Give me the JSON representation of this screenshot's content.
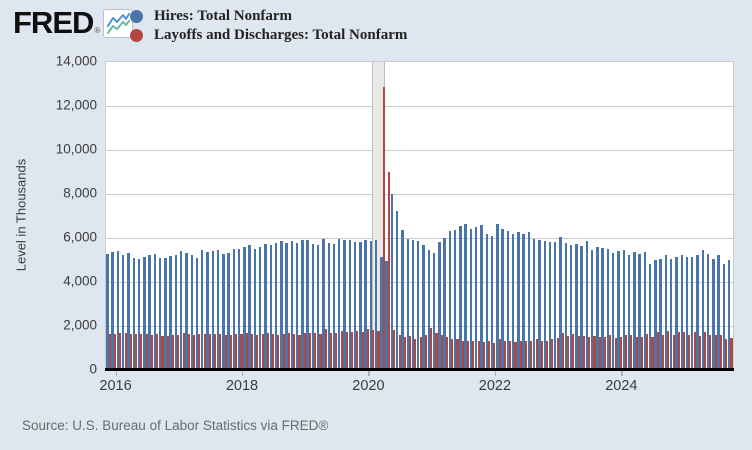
{
  "header": {
    "logo_text": "FRED",
    "logo_reg": "®"
  },
  "legend": [
    {
      "label": "Hires: Total Nonfarm",
      "color": "#4975a8"
    },
    {
      "label": "Layoffs and Discharges: Total Nonfarm",
      "color": "#b04743"
    }
  ],
  "colors": {
    "page_bg": "#dee7ef",
    "plot_bg": "#ffffff",
    "gridline": "#cccccc",
    "axis_line": "#000000",
    "recession_shading": "#e9e9e9"
  },
  "chart_data": {
    "type": "bar",
    "frequency": "monthly",
    "x_start": "2015-11",
    "x_end": "2025-09",
    "title": "",
    "xlabel": "",
    "ylabel": "Level in Thousands",
    "ylim": [
      0,
      14000
    ],
    "grid": true,
    "legend_position": "top",
    "y_ticks": [
      {
        "value": 0,
        "label": "0"
      },
      {
        "value": 2000,
        "label": "2,000"
      },
      {
        "value": 4000,
        "label": "4,000"
      },
      {
        "value": 6000,
        "label": "6,000"
      },
      {
        "value": 8000,
        "label": "8,000"
      },
      {
        "value": 10000,
        "label": "10,000"
      },
      {
        "value": 12000,
        "label": "12,000"
      },
      {
        "value": 14000,
        "label": "14,000"
      }
    ],
    "x_ticks": [
      {
        "label": "2016",
        "month_index": 2
      },
      {
        "label": "2018",
        "month_index": 26
      },
      {
        "label": "2020",
        "month_index": 50
      },
      {
        "label": "2022",
        "month_index": 74
      },
      {
        "label": "2024",
        "month_index": 98
      }
    ],
    "recession_shading": {
      "start": "2020-02",
      "end": "2020-04",
      "start_month_index": 51,
      "end_month_index": 53
    },
    "series": [
      {
        "name": "Hires: Total Nonfarm",
        "color": "#4975a8",
        "values": [
          5280,
          5360,
          5390,
          5250,
          5310,
          5090,
          5050,
          5130,
          5220,
          5260,
          5080,
          5110,
          5160,
          5250,
          5430,
          5310,
          5210,
          5100,
          5470,
          5380,
          5420,
          5470,
          5270,
          5340,
          5480,
          5490,
          5570,
          5680,
          5490,
          5610,
          5750,
          5700,
          5780,
          5870,
          5770,
          5880,
          5790,
          5900,
          5890,
          5740,
          5660,
          5940,
          5790,
          5740,
          5950,
          5890,
          5910,
          5840,
          5810,
          5900,
          5880,
          5900,
          5140,
          4960,
          7990,
          7240,
          6350,
          5950,
          5900,
          5850,
          5700,
          5450,
          5330,
          5840,
          5990,
          6300,
          6350,
          6550,
          6650,
          6420,
          6500,
          6600,
          6190,
          6110,
          6650,
          6420,
          6340,
          6190,
          6270,
          6190,
          6270,
          5970,
          5890,
          5850,
          5840,
          5840,
          6040,
          5790,
          5700,
          5740,
          5630,
          5850,
          5440,
          5590,
          5540,
          5510,
          5330,
          5390,
          5440,
          5210,
          5360,
          5290,
          5360,
          4830,
          4990,
          5060,
          5210,
          5060,
          5140,
          5210,
          5140,
          5140,
          5210,
          5440,
          5290,
          5060,
          5210,
          4830,
          4990
        ]
      },
      {
        "name": "Layoffs and Discharges: Total Nonfarm",
        "color": "#b04743",
        "values": [
          1640,
          1620,
          1660,
          1700,
          1620,
          1650,
          1620,
          1640,
          1610,
          1620,
          1550,
          1560,
          1580,
          1600,
          1680,
          1650,
          1600,
          1640,
          1650,
          1640,
          1630,
          1640,
          1600,
          1580,
          1630,
          1650,
          1660,
          1650,
          1610,
          1640,
          1660,
          1620,
          1600,
          1650,
          1660,
          1640,
          1610,
          1660,
          1690,
          1680,
          1640,
          1870,
          1700,
          1660,
          1760,
          1710,
          1740,
          1760,
          1710,
          1850,
          1800,
          1790,
          12850,
          8990,
          1810,
          1590,
          1480,
          1530,
          1390,
          1480,
          1580,
          1890,
          1700,
          1580,
          1500,
          1410,
          1390,
          1340,
          1310,
          1340,
          1300,
          1290,
          1330,
          1240,
          1390,
          1340,
          1300,
          1290,
          1330,
          1300,
          1340,
          1390,
          1340,
          1330,
          1390,
          1440,
          1690,
          1540,
          1640,
          1540,
          1560,
          1500,
          1540,
          1490,
          1500,
          1590,
          1450,
          1490,
          1590,
          1590,
          1490,
          1510,
          1640,
          1490,
          1740,
          1590,
          1790,
          1590,
          1740,
          1740,
          1590,
          1740,
          1540,
          1740,
          1590,
          1590,
          1590,
          1390,
          1440
        ]
      }
    ]
  },
  "footer": {
    "source": "Source: U.S. Bureau of Labor Statistics via FRED®"
  }
}
